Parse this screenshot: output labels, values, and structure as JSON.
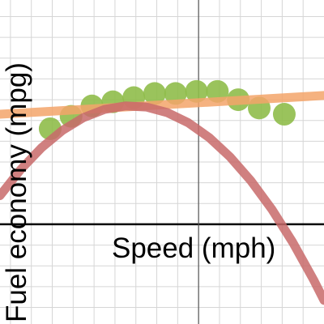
{
  "chart_data": {
    "type": "scatter",
    "xlabel": "Speed (mph)",
    "ylabel": "Fuel economy (mpg)",
    "xlim": [
      -9.5,
      6
    ],
    "ylim": [
      -4.8,
      10.8
    ],
    "x_gridlines": [
      -9,
      -8,
      -7,
      -6,
      -5,
      -4,
      -3,
      -2,
      -1,
      0,
      1,
      2,
      3,
      4,
      5
    ],
    "y_gridlines": [
      -4,
      -3,
      -2,
      -1,
      0,
      1,
      2,
      3,
      4,
      5,
      6,
      7,
      8,
      9,
      10
    ],
    "grid": true,
    "series": [
      {
        "kind": "scatter",
        "color": "#8fbc4a",
        "points": [
          [
            -7.1,
            4.6
          ],
          [
            -6.1,
            5.2
          ],
          [
            -5.1,
            5.7
          ],
          [
            -4.1,
            5.9
          ],
          [
            -3.1,
            6.1
          ],
          [
            -2.1,
            6.3
          ],
          [
            -1.1,
            6.3
          ],
          [
            -0.1,
            6.4
          ],
          [
            0.9,
            6.4
          ],
          [
            1.9,
            6.0
          ],
          [
            2.9,
            5.6
          ],
          [
            4.1,
            5.3
          ]
        ]
      },
      {
        "kind": "line",
        "color": "#f3a56a",
        "points": [
          [
            -9.5,
            5.3
          ],
          [
            6,
            6.2
          ]
        ]
      },
      {
        "kind": "curve",
        "color": "#c86a6a",
        "points": [
          [
            -9.5,
            1.38
          ],
          [
            -8.5,
            2.65
          ],
          [
            -7.5,
            3.7
          ],
          [
            -6.5,
            4.53
          ],
          [
            -5.5,
            5.14
          ],
          [
            -4.5,
            5.53
          ],
          [
            -3.5,
            5.7
          ],
          [
            -2.5,
            5.65
          ],
          [
            -1.5,
            5.38
          ],
          [
            -0.5,
            4.89
          ],
          [
            0.5,
            4.18
          ],
          [
            1.5,
            3.25
          ],
          [
            2.5,
            2.1
          ],
          [
            3.5,
            0.73
          ],
          [
            4.5,
            -0.86
          ],
          [
            5.5,
            -2.67
          ],
          [
            6,
            -3.66
          ]
        ]
      }
    ]
  }
}
